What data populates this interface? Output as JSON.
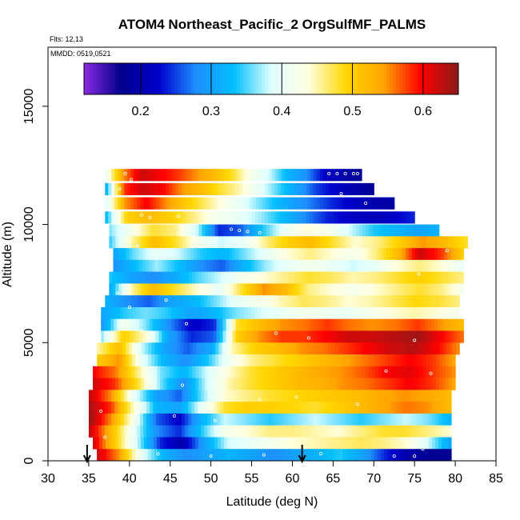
{
  "chart_data": {
    "type": "heatmap",
    "title": "ATOM4 Northeast_Pacific_2 OrgSulfMF_PALMS",
    "flights_label": "Flts: 12,13",
    "date_label": "MMDD: 0519,0521",
    "xlabel": "Latitude (deg N)",
    "ylabel": "Altitude (m)",
    "xlim": [
      30,
      85
    ],
    "ylim": [
      0,
      17500
    ],
    "xticks": [
      30,
      35,
      40,
      45,
      50,
      55,
      60,
      65,
      70,
      75,
      80,
      85
    ],
    "yticks": [
      0,
      5000,
      10000,
      15000
    ],
    "colorbar": {
      "range": [
        0.12,
        0.65
      ],
      "ticks": [
        0.2,
        0.3,
        0.4,
        0.5,
        0.6
      ],
      "tick_labels": [
        "0.2",
        "0.3",
        "0.4",
        "0.5",
        "0.6"
      ],
      "colors": [
        "#8a2be2",
        "#00008b",
        "#0000cd",
        "#1e90ff",
        "#00bfff",
        "#e0ffff",
        "#ffffe0",
        "#ffd700",
        "#ffa500",
        "#ff0000",
        "#8b1a1a"
      ]
    },
    "arrows_lat": [
      34.8,
      61.2
    ],
    "rows": [
      {
        "alt": 12100,
        "lat": [
          37,
          68.5
        ],
        "values": [
          0.4,
          0.55,
          0.62,
          0.6,
          0.58,
          0.55,
          0.52,
          0.48,
          0.42,
          0.38,
          0.32,
          0.28,
          0.22,
          0.2,
          0.18
        ]
      },
      {
        "alt": 11500,
        "lat": [
          37,
          70
        ],
        "values": [
          0.3,
          0.58,
          0.62,
          0.6,
          0.55,
          0.52,
          0.48,
          0.45,
          0.4,
          0.35,
          0.3,
          0.25,
          0.22,
          0.2,
          0.18
        ]
      },
      {
        "alt": 10900,
        "lat": [
          37,
          72.5
        ],
        "values": [
          0.38,
          0.55,
          0.6,
          0.55,
          0.5,
          0.46,
          0.42,
          0.38,
          0.34,
          0.3,
          0.27,
          0.24,
          0.22,
          0.2,
          0.19
        ]
      },
      {
        "alt": 10300,
        "lat": [
          37,
          75
        ],
        "values": [
          0.32,
          0.5,
          0.52,
          0.5,
          0.46,
          0.42,
          0.4,
          0.37,
          0.33,
          0.28,
          0.24,
          0.22,
          0.21,
          0.22,
          0.24
        ]
      },
      {
        "alt": 9750,
        "lat": [
          37.5,
          78
        ],
        "values": [
          0.36,
          0.42,
          0.48,
          0.46,
          0.38,
          0.24,
          0.26,
          0.34,
          0.4,
          0.44,
          0.42,
          0.38,
          0.34,
          0.32,
          0.3,
          0.32
        ]
      },
      {
        "alt": 9250,
        "lat": [
          37.5,
          81.5
        ],
        "values": [
          0.34,
          0.45,
          0.52,
          0.48,
          0.42,
          0.38,
          0.4,
          0.46,
          0.5,
          0.52,
          0.48,
          0.44,
          0.46,
          0.5,
          0.55,
          0.52,
          0.48
        ]
      },
      {
        "alt": 8750,
        "lat": [
          38,
          81
        ],
        "values": [
          0.3,
          0.36,
          0.4,
          0.38,
          0.34,
          0.32,
          0.36,
          0.4,
          0.44,
          0.46,
          0.44,
          0.42,
          0.46,
          0.52,
          0.62,
          0.58,
          0.5
        ]
      },
      {
        "alt": 8250,
        "lat": [
          38,
          81
        ],
        "values": [
          0.28,
          0.33,
          0.37,
          0.33,
          0.28,
          0.26,
          0.32,
          0.37,
          0.4,
          0.42,
          0.4,
          0.38,
          0.4,
          0.44,
          0.46,
          0.44,
          0.4
        ]
      },
      {
        "alt": 7750,
        "lat": [
          37.5,
          81
        ],
        "values": [
          0.34,
          0.3,
          0.28,
          0.31,
          0.35,
          0.38,
          0.42,
          0.44,
          0.46,
          0.48,
          0.47,
          0.45,
          0.46,
          0.48,
          0.5,
          0.48,
          0.46
        ]
      },
      {
        "alt": 7250,
        "lat": [
          37.5,
          81
        ],
        "values": [
          0.3,
          0.45,
          0.52,
          0.48,
          0.44,
          0.4,
          0.48,
          0.55,
          0.52,
          0.46,
          0.44,
          0.42,
          0.44,
          0.46,
          0.48,
          0.46,
          0.42
        ]
      },
      {
        "alt": 6750,
        "lat": [
          37,
          80.5
        ],
        "values": [
          0.32,
          0.28,
          0.26,
          0.3,
          0.32,
          0.36,
          0.4,
          0.42,
          0.45,
          0.47,
          0.46,
          0.44,
          0.45,
          0.47,
          0.49,
          0.48,
          0.46
        ]
      },
      {
        "alt": 6250,
        "lat": [
          36.5,
          80.5
        ],
        "values": [
          0.3,
          0.34,
          0.36,
          0.34,
          0.3,
          0.32,
          0.36,
          0.38,
          0.4,
          0.42,
          0.41,
          0.4,
          0.42,
          0.44,
          0.45,
          0.44,
          0.42
        ]
      },
      {
        "alt": 5750,
        "lat": [
          36.5,
          81
        ],
        "values": [
          0.28,
          0.42,
          0.36,
          0.28,
          0.22,
          0.24,
          0.48,
          0.52,
          0.55,
          0.56,
          0.58,
          0.56,
          0.55,
          0.56,
          0.58,
          0.55,
          0.52
        ]
      },
      {
        "alt": 5250,
        "lat": [
          36.5,
          81
        ],
        "values": [
          0.36,
          0.5,
          0.44,
          0.3,
          0.24,
          0.26,
          0.5,
          0.55,
          0.58,
          0.58,
          0.6,
          0.62,
          0.62,
          0.63,
          0.64,
          0.6,
          0.56
        ]
      },
      {
        "alt": 4750,
        "lat": [
          36,
          80.5
        ],
        "values": [
          0.45,
          0.52,
          0.38,
          0.3,
          0.26,
          0.3,
          0.45,
          0.5,
          0.52,
          0.55,
          0.56,
          0.58,
          0.6,
          0.62,
          0.63,
          0.6,
          0.55
        ]
      },
      {
        "alt": 4250,
        "lat": [
          36,
          80
        ],
        "values": [
          0.5,
          0.55,
          0.4,
          0.32,
          0.28,
          0.34,
          0.42,
          0.46,
          0.48,
          0.5,
          0.52,
          0.54,
          0.56,
          0.58,
          0.6,
          0.58,
          0.54
        ]
      },
      {
        "alt": 3750,
        "lat": [
          35.5,
          80
        ],
        "values": [
          0.6,
          0.56,
          0.46,
          0.36,
          0.32,
          0.38,
          0.44,
          0.48,
          0.5,
          0.52,
          0.54,
          0.55,
          0.57,
          0.6,
          0.61,
          0.58,
          0.55
        ]
      },
      {
        "alt": 3250,
        "lat": [
          35.5,
          80
        ],
        "values": [
          0.62,
          0.58,
          0.48,
          0.36,
          0.28,
          0.38,
          0.45,
          0.48,
          0.5,
          0.52,
          0.53,
          0.55,
          0.56,
          0.58,
          0.6,
          0.58,
          0.54
        ]
      },
      {
        "alt": 2750,
        "lat": [
          35,
          79.5
        ],
        "values": [
          0.63,
          0.55,
          0.4,
          0.3,
          0.26,
          0.36,
          0.44,
          0.46,
          0.48,
          0.49,
          0.5,
          0.51,
          0.52,
          0.54,
          0.55,
          0.54,
          0.52
        ]
      },
      {
        "alt": 2250,
        "lat": [
          35,
          79.5
        ],
        "values": [
          0.64,
          0.58,
          0.44,
          0.32,
          0.3,
          0.4,
          0.48,
          0.5,
          0.5,
          0.49,
          0.48,
          0.5,
          0.52,
          0.54,
          0.56,
          0.55,
          0.52
        ]
      },
      {
        "alt": 1750,
        "lat": [
          35,
          79.5
        ],
        "values": [
          0.65,
          0.55,
          0.42,
          0.26,
          0.22,
          0.32,
          0.38,
          0.36,
          0.34,
          0.36,
          0.38,
          0.36,
          0.34,
          0.36,
          0.38,
          0.36,
          0.32
        ]
      },
      {
        "alt": 1250,
        "lat": [
          35,
          79.5
        ],
        "values": [
          0.63,
          0.52,
          0.4,
          0.28,
          0.24,
          0.34,
          0.42,
          0.44,
          0.46,
          0.46,
          0.45,
          0.44,
          0.46,
          0.48,
          0.48,
          0.46,
          0.44
        ]
      },
      {
        "alt": 750,
        "lat": [
          35.5,
          79.5
        ],
        "values": [
          0.62,
          0.5,
          0.38,
          0.24,
          0.2,
          0.3,
          0.38,
          0.4,
          0.42,
          0.44,
          0.45,
          0.46,
          0.47,
          0.46,
          0.44,
          0.38,
          0.3
        ]
      },
      {
        "alt": 250,
        "lat": [
          36,
          79.5
        ],
        "values": [
          0.62,
          0.55,
          0.4,
          0.32,
          0.28,
          0.3,
          0.32,
          0.3,
          0.28,
          0.3,
          0.32,
          0.34,
          0.3,
          0.24,
          0.2,
          0.18,
          0.18
        ]
      }
    ],
    "points": [
      {
        "lat": 39.5,
        "alt": 12150
      },
      {
        "lat": 40.2,
        "alt": 11900
      },
      {
        "lat": 38.8,
        "alt": 11500
      },
      {
        "lat": 64.5,
        "alt": 12150
      },
      {
        "lat": 65.5,
        "alt": 12150
      },
      {
        "lat": 66.5,
        "alt": 12150
      },
      {
        "lat": 67.5,
        "alt": 12150
      },
      {
        "lat": 68.0,
        "alt": 12150
      },
      {
        "lat": 66.0,
        "alt": 11300
      },
      {
        "lat": 69.0,
        "alt": 10900
      },
      {
        "lat": 41.5,
        "alt": 10400
      },
      {
        "lat": 42.5,
        "alt": 10300
      },
      {
        "lat": 46.0,
        "alt": 10350
      },
      {
        "lat": 52.5,
        "alt": 9800
      },
      {
        "lat": 53.5,
        "alt": 9750
      },
      {
        "lat": 54.5,
        "alt": 9700
      },
      {
        "lat": 56.0,
        "alt": 9650
      },
      {
        "lat": 60.0,
        "alt": 9600
      },
      {
        "lat": 79.0,
        "alt": 8900
      },
      {
        "lat": 41.0,
        "alt": 9100
      },
      {
        "lat": 75.5,
        "alt": 7900
      },
      {
        "lat": 38.5,
        "alt": 7100
      },
      {
        "lat": 40.0,
        "alt": 6500
      },
      {
        "lat": 44.5,
        "alt": 6800
      },
      {
        "lat": 47.0,
        "alt": 5800
      },
      {
        "lat": 41.5,
        "alt": 5500
      },
      {
        "lat": 58.0,
        "alt": 5400
      },
      {
        "lat": 62.0,
        "alt": 5200
      },
      {
        "lat": 75.0,
        "alt": 5100
      },
      {
        "lat": 71.5,
        "alt": 3800
      },
      {
        "lat": 77.0,
        "alt": 3700
      },
      {
        "lat": 42.5,
        "alt": 3400
      },
      {
        "lat": 46.5,
        "alt": 3200
      },
      {
        "lat": 56.0,
        "alt": 2600
      },
      {
        "lat": 60.5,
        "alt": 2700
      },
      {
        "lat": 68.0,
        "alt": 2400
      },
      {
        "lat": 36.5,
        "alt": 2100
      },
      {
        "lat": 45.5,
        "alt": 1900
      },
      {
        "lat": 50.5,
        "alt": 1700
      },
      {
        "lat": 40.5,
        "alt": 1300
      },
      {
        "lat": 37.0,
        "alt": 1000
      },
      {
        "lat": 73.5,
        "alt": 900
      },
      {
        "lat": 76.0,
        "alt": 500
      },
      {
        "lat": 43.5,
        "alt": 300
      },
      {
        "lat": 50.0,
        "alt": 200
      },
      {
        "lat": 56.5,
        "alt": 250
      },
      {
        "lat": 63.5,
        "alt": 300
      },
      {
        "lat": 72.5,
        "alt": 200
      },
      {
        "lat": 75.0,
        "alt": 200
      }
    ]
  }
}
